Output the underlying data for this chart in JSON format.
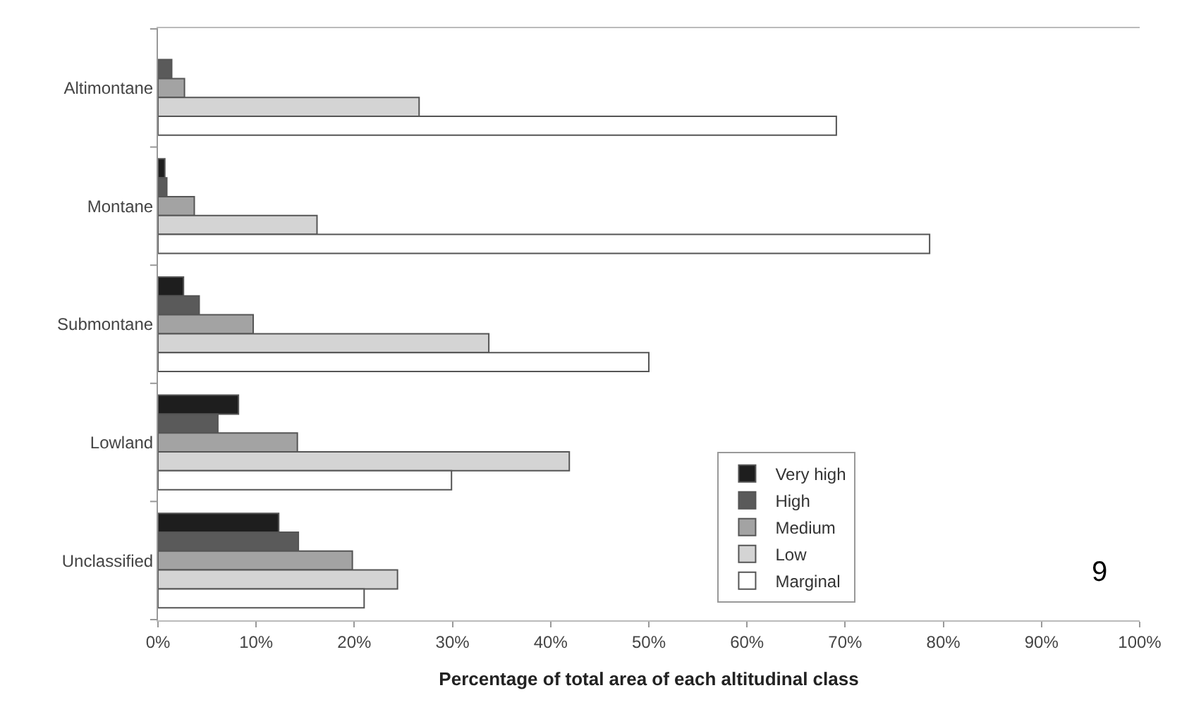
{
  "chart_data": {
    "type": "bar",
    "orientation": "horizontal",
    "xlabel": "Percentage of total area of each altitudinal class",
    "categories": [
      "Altimontane",
      "Montane",
      "Submontane",
      "Lowland",
      "Unclassified"
    ],
    "series": [
      {
        "name": "Very high",
        "color": "#1e1e1e",
        "values": [
          null,
          0.7,
          2.6,
          8.2,
          12.3
        ]
      },
      {
        "name": "High",
        "color": "#5a5a5a",
        "values": [
          1.4,
          0.9,
          4.2,
          6.1,
          14.3
        ]
      },
      {
        "name": "Medium",
        "color": "#a3a3a3",
        "values": [
          2.7,
          3.7,
          9.7,
          14.2,
          19.8
        ]
      },
      {
        "name": "Low",
        "color": "#d4d4d4",
        "values": [
          26.6,
          16.2,
          33.7,
          41.9,
          24.4
        ]
      },
      {
        "name": "Marginal",
        "color": "#ffffff",
        "values": [
          69.1,
          78.6,
          50.0,
          29.9,
          21.0
        ]
      }
    ],
    "xlim": [
      0,
      100
    ],
    "xticks": [
      {
        "value": 0,
        "label": "0%"
      },
      {
        "value": 10,
        "label": "10%"
      },
      {
        "value": 20,
        "label": "20%"
      },
      {
        "value": 30,
        "label": "30%"
      },
      {
        "value": 40,
        "label": "40%"
      },
      {
        "value": 50,
        "label": "50%"
      },
      {
        "value": 60,
        "label": "60%"
      },
      {
        "value": 70,
        "label": "70%"
      },
      {
        "value": 80,
        "label": "80%"
      },
      {
        "value": 90,
        "label": "90%"
      },
      {
        "value": 100,
        "label": "100%"
      }
    ],
    "legend": "bottom right",
    "annotations": [
      "9"
    ]
  }
}
